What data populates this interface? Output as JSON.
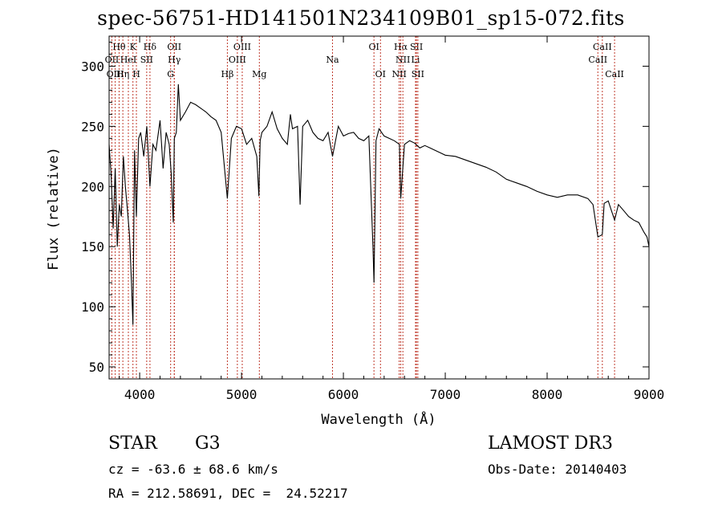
{
  "chart_data": {
    "type": "line",
    "title": "spec-56751-HD141501N234109B01_sp15-072.fits",
    "xlabel": "Wavelength (Å)",
    "ylabel": "Flux (relative)",
    "xlim": [
      3700,
      9000
    ],
    "ylim": [
      40,
      325
    ],
    "xticks": [
      4000,
      5000,
      6000,
      7000,
      8000,
      9000
    ],
    "yticks": [
      50,
      100,
      150,
      200,
      250,
      300
    ],
    "series": [
      {
        "name": "flux",
        "x": [
          3700,
          3720,
          3740,
          3760,
          3780,
          3800,
          3820,
          3840,
          3860,
          3880,
          3900,
          3920,
          3934,
          3950,
          3968,
          3990,
          4010,
          4040,
          4070,
          4101,
          4130,
          4160,
          4200,
          4230,
          4260,
          4290,
          4310,
          4330,
          4340,
          4360,
          4380,
          4400,
          4450,
          4500,
          4550,
          4600,
          4650,
          4700,
          4750,
          4800,
          4861,
          4900,
          4950,
          5000,
          5050,
          5100,
          5150,
          5170,
          5183,
          5200,
          5250,
          5300,
          5350,
          5400,
          5450,
          5480,
          5500,
          5550,
          5575,
          5600,
          5650,
          5700,
          5750,
          5800,
          5850,
          5893,
          5950,
          6000,
          6050,
          6100,
          6150,
          6200,
          6250,
          6290,
          6300,
          6320,
          6350,
          6400,
          6450,
          6500,
          6550,
          6563,
          6600,
          6650,
          6700,
          6750,
          6800,
          6850,
          6900,
          6950,
          7000,
          7100,
          7200,
          7300,
          7400,
          7500,
          7600,
          7700,
          7800,
          7900,
          8000,
          8100,
          8200,
          8300,
          8400,
          8450,
          8498,
          8542,
          8560,
          8600,
          8662,
          8700,
          8750,
          8800,
          8850,
          8900,
          8950,
          8980,
          9000
        ],
        "values": [
          235,
          210,
          165,
          215,
          150,
          185,
          175,
          225,
          200,
          180,
          160,
          120,
          85,
          230,
          175,
          240,
          245,
          225,
          250,
          200,
          235,
          230,
          255,
          215,
          245,
          235,
          210,
          170,
          240,
          245,
          285,
          255,
          262,
          270,
          268,
          265,
          262,
          258,
          255,
          245,
          190,
          240,
          250,
          248,
          235,
          240,
          225,
          192,
          238,
          245,
          250,
          262,
          248,
          240,
          235,
          260,
          248,
          250,
          185,
          250,
          255,
          245,
          240,
          238,
          245,
          225,
          250,
          242,
          244,
          245,
          240,
          238,
          242,
          150,
          120,
          238,
          248,
          242,
          240,
          238,
          235,
          190,
          235,
          238,
          236,
          232,
          234,
          232,
          230,
          228,
          226,
          225,
          222,
          219,
          216,
          212,
          206,
          203,
          200,
          196,
          193,
          191,
          193,
          193,
          190,
          185,
          158,
          160,
          186,
          188,
          172,
          185,
          180,
          175,
          172,
          170,
          162,
          158,
          150
        ]
      }
    ],
    "line_markers": [
      {
        "name": "Hθ",
        "wavelength": 3798,
        "row": 1
      },
      {
        "name": "OII",
        "wavelength": 3727,
        "row": 2
      },
      {
        "name": "OIII",
        "wavelength": 3760,
        "row": 3
      },
      {
        "name": "K",
        "wavelength": 3934,
        "row": 1
      },
      {
        "name": "HeI",
        "wavelength": 3889,
        "row": 2
      },
      {
        "name": "Hη",
        "wavelength": 3835,
        "row": 3
      },
      {
        "name": "Hδ",
        "wavelength": 4101,
        "row": 1
      },
      {
        "name": "SII",
        "wavelength": 4069,
        "row": 2
      },
      {
        "name": "H",
        "wavelength": 3968,
        "row": 3
      },
      {
        "name": "OII",
        "wavelength": 4340,
        "row": 1
      },
      {
        "name": "Hγ",
        "wavelength": 4340,
        "row": 2
      },
      {
        "name": "G",
        "wavelength": 4304,
        "row": 3
      },
      {
        "name": "Hβ",
        "wavelength": 4861,
        "row": 3
      },
      {
        "name": "OIII",
        "wavelength": 5007,
        "row": 1
      },
      {
        "name": "OIII",
        "wavelength": 4959,
        "row": 2
      },
      {
        "name": "Mg",
        "wavelength": 5175,
        "row": 3
      },
      {
        "name": "Na",
        "wavelength": 5893,
        "row": 2
      },
      {
        "name": "OI",
        "wavelength": 6300,
        "row": 1
      },
      {
        "name": "OI",
        "wavelength": 6364,
        "row": 3
      },
      {
        "name": "Hα",
        "wavelength": 6563,
        "row": 1
      },
      {
        "name": "NII",
        "wavelength": 6584,
        "row": 2
      },
      {
        "name": "NII",
        "wavelength": 6548,
        "row": 3
      },
      {
        "name": "SII",
        "wavelength": 6717,
        "row": 1
      },
      {
        "name": "Li",
        "wavelength": 6708,
        "row": 2
      },
      {
        "name": "SII",
        "wavelength": 6731,
        "row": 3
      },
      {
        "name": "CaII",
        "wavelength": 8542,
        "row": 1
      },
      {
        "name": "CaII",
        "wavelength": 8498,
        "row": 2
      },
      {
        "name": "CaII",
        "wavelength": 8662,
        "row": 3
      }
    ]
  },
  "info": {
    "class": "STAR",
    "subclass": "G3",
    "survey": "LAMOST DR3",
    "cz": "cz = -63.6 ± 68.6 km/s",
    "obs_date": "Obs-Date: 20140403",
    "coords": "RA = 212.58691, DEC =  24.52217"
  }
}
